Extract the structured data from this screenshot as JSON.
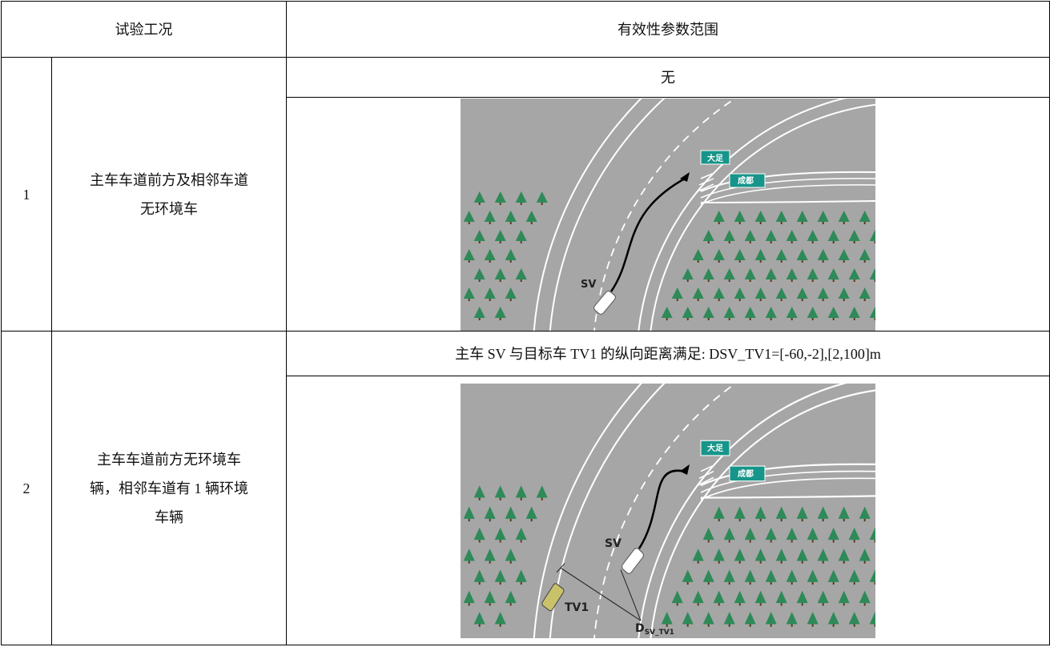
{
  "table": {
    "header": [
      "试验工况",
      "有效性参数范围"
    ],
    "rows": [
      {
        "index": "1",
        "condition_lines": [
          "主车车道前方及相邻车道",
          "无环境车"
        ],
        "parameter": "无",
        "figure": {
          "signs": [
            "大足",
            "成都"
          ],
          "vehicle": "SV"
        }
      },
      {
        "index": "2",
        "condition_lines": [
          "主车车道前方无环境车",
          "辆，相邻车道有 1 辆环境",
          "车辆"
        ],
        "parameter": "主车 SV 与目标车 TV1 的纵向距离满足: DSV_TV1=[-60,-2],[2,100]m",
        "figure": {
          "signs": [
            "大足",
            "成都"
          ],
          "vehicle": "SV",
          "target": "TV1",
          "distance": {
            "main": "D",
            "sub": "SV_TV1"
          }
        }
      }
    ]
  }
}
